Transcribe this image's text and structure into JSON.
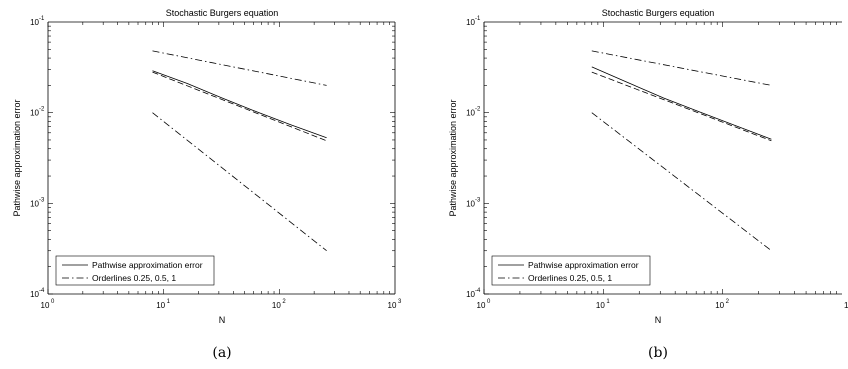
{
  "chart_data": [
    {
      "type": "line",
      "title": "Stochastic Burgers equation",
      "xlabel": "N",
      "ylabel": "Pathwise approximation error",
      "caption": "(a)",
      "xscale": "log",
      "yscale": "log",
      "xlim": [
        1,
        1000
      ],
      "ylim": [
        0.0001,
        0.1
      ],
      "xticks": [
        {
          "base": "10",
          "exp": "0"
        },
        {
          "base": "10",
          "exp": "1"
        },
        {
          "base": "10",
          "exp": "2"
        },
        {
          "base": "10",
          "exp": "3"
        }
      ],
      "yticks": [
        {
          "base": "10",
          "exp": "-4"
        },
        {
          "base": "10",
          "exp": "-3"
        },
        {
          "base": "10",
          "exp": "-2"
        },
        {
          "base": "10",
          "exp": "-1"
        }
      ],
      "legend_position": "bottom-left",
      "legend": [
        "Pathwise approximation error",
        "Orderlines 0.25, 0.5, 1"
      ],
      "series": [
        {
          "legend": "Pathwise approximation error",
          "style": "solid",
          "x": [
            8,
            16,
            32,
            64,
            128,
            256
          ],
          "y": [
            0.029,
            0.021,
            0.0145,
            0.0102,
            0.0073,
            0.0053
          ]
        },
        {
          "style": "dashed",
          "x": [
            8,
            256
          ],
          "y": [
            0.028,
            0.0049
          ]
        },
        {
          "legend": "Orderlines 0.25, 0.5, 1",
          "style": "dashdot",
          "x": [
            8,
            256
          ],
          "y": [
            0.048,
            0.02
          ]
        },
        {
          "style": "dashdot",
          "x": [
            8,
            256
          ],
          "y": [
            0.01,
            0.0003
          ]
        }
      ]
    },
    {
      "type": "line",
      "title": "Stochastic Burgers equation",
      "xlabel": "N",
      "ylabel": "Pathwise approximation error",
      "caption": "(b)",
      "xscale": "log",
      "yscale": "log",
      "xlim": [
        1,
        1000
      ],
      "ylim": [
        0.0001,
        0.1
      ],
      "xticks": [
        {
          "base": "10",
          "exp": "0"
        },
        {
          "base": "10",
          "exp": "1"
        },
        {
          "base": "10",
          "exp": "2"
        }
      ],
      "yticks": [
        {
          "base": "10",
          "exp": "-4"
        },
        {
          "base": "10",
          "exp": "-3"
        },
        {
          "base": "10",
          "exp": "-2"
        },
        {
          "base": "10",
          "exp": "-1"
        }
      ],
      "partial_tick_label": "1",
      "legend_position": "bottom-left",
      "legend": [
        "Pathwise approximation error",
        "Orderlines 0.25, 0.5, 1"
      ],
      "series": [
        {
          "legend": "Pathwise approximation error",
          "style": "solid",
          "x": [
            8,
            16,
            32,
            64,
            128,
            256
          ],
          "y": [
            0.032,
            0.0215,
            0.0145,
            0.0102,
            0.0072,
            0.0051
          ]
        },
        {
          "style": "dashed",
          "x": [
            8,
            256
          ],
          "y": [
            0.028,
            0.0049
          ]
        },
        {
          "legend": "Orderlines 0.25, 0.5, 1",
          "style": "dashdot",
          "x": [
            8,
            256
          ],
          "y": [
            0.048,
            0.02
          ]
        },
        {
          "style": "dashdot",
          "x": [
            8,
            256
          ],
          "y": [
            0.01,
            0.0003
          ]
        }
      ]
    }
  ]
}
